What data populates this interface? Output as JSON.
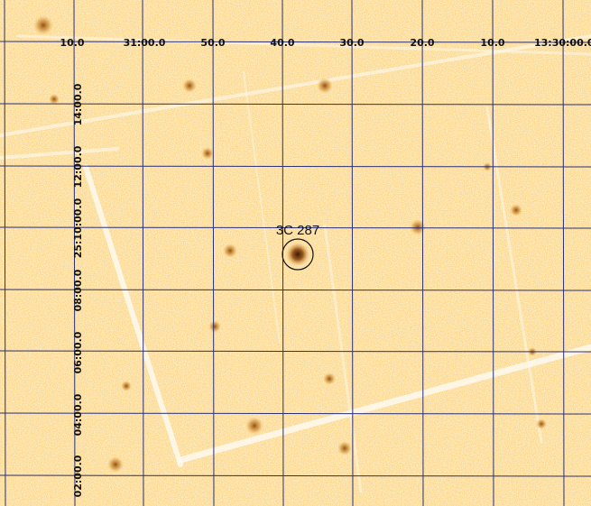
{
  "source": {
    "name": "3C 287"
  },
  "ra_axis": {
    "tick_labels": [
      "10.0",
      "31:00.0",
      "50.0",
      "40.0",
      "30.0",
      "20.0",
      "10.0",
      "13:30:00.0"
    ]
  },
  "dec_axis": {
    "tick_labels": [
      "14:00.0",
      "12:00.0",
      "25:10:00.0",
      "08:00.0",
      "06:00.0",
      "04:00.0",
      "02:00.0"
    ]
  },
  "colors": {
    "background": "#fcd98e",
    "grid": "#2a2f78",
    "stripe": "#fffaf0",
    "blob": "#c07a1d"
  }
}
